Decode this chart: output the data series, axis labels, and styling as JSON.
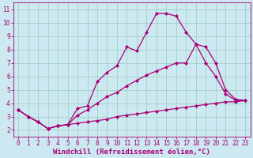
{
  "xlabel": "Windchill (Refroidissement éolien,°C)",
  "bg_color": "#cce8f0",
  "line_color": "#aa0077",
  "grid_color": "#99ccbb",
  "xlim": [
    -0.5,
    23.5
  ],
  "ylim": [
    1.5,
    11.5
  ],
  "xticks": [
    0,
    1,
    2,
    3,
    4,
    5,
    6,
    7,
    8,
    9,
    10,
    11,
    12,
    13,
    14,
    15,
    16,
    17,
    18,
    19,
    20,
    21,
    22,
    23
  ],
  "yticks": [
    2,
    3,
    4,
    5,
    6,
    7,
    8,
    9,
    10,
    11
  ],
  "line1_x": [
    0,
    1,
    2,
    3,
    4,
    5,
    6,
    7,
    8,
    9,
    10,
    11,
    12,
    13,
    14,
    15,
    16,
    17,
    18,
    19,
    20,
    21,
    22,
    23
  ],
  "line1_y": [
    3.5,
    3.0,
    2.6,
    2.1,
    2.3,
    2.4,
    2.5,
    2.6,
    2.7,
    2.8,
    3.0,
    3.1,
    3.2,
    3.3,
    3.4,
    3.5,
    3.6,
    3.7,
    3.8,
    3.9,
    4.0,
    4.1,
    4.1,
    4.2
  ],
  "line2_x": [
    0,
    1,
    2,
    3,
    4,
    5,
    6,
    7,
    8,
    9,
    10,
    11,
    12,
    13,
    14,
    15,
    16,
    17,
    18,
    19,
    20,
    21,
    22,
    23
  ],
  "line2_y": [
    3.5,
    3.0,
    2.6,
    2.1,
    2.3,
    2.4,
    3.6,
    3.8,
    5.6,
    6.3,
    6.8,
    8.2,
    7.9,
    9.3,
    10.7,
    10.7,
    10.5,
    9.3,
    8.4,
    8.2,
    7.0,
    5.0,
    4.3,
    4.2
  ],
  "line3_x": [
    0,
    1,
    2,
    3,
    4,
    5,
    6,
    7,
    8,
    9,
    10,
    11,
    12,
    13,
    14,
    15,
    16,
    17,
    18,
    19,
    20,
    21,
    22,
    23
  ],
  "line3_y": [
    3.5,
    3.0,
    2.6,
    2.1,
    2.3,
    2.4,
    3.1,
    3.5,
    4.0,
    4.5,
    4.8,
    5.3,
    5.7,
    6.1,
    6.4,
    6.7,
    7.0,
    7.0,
    8.4,
    7.0,
    6.0,
    4.7,
    4.2,
    4.2
  ],
  "marker": "D",
  "markersize": 2,
  "linewidth": 0.9,
  "xlabel_fontsize": 6.5,
  "tick_fontsize": 5.5
}
